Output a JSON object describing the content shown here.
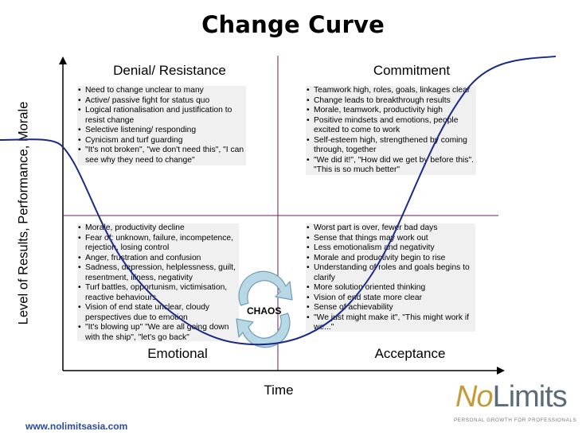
{
  "title": "Change Curve",
  "y_axis_label": "Level of Results, Performance, Morale",
  "x_axis_label": "Time",
  "quadrants": {
    "top_left": {
      "heading": "Denial/ Resistance",
      "bullets": [
        "Need to change unclear to many",
        "Active/ passive fight for status quo",
        "Logical rationalisation and justification to resist change",
        "Selective listening/ responding",
        "Cynicism and turf guarding",
        "\"It's not broken\", \"we don't need this\", \"I can see why they need to change\""
      ]
    },
    "top_right": {
      "heading": "Commitment",
      "bullets": [
        "Teamwork high, roles, goals, linkages clear",
        "Change leads to breakthrough results",
        "Morale, teamwork, productivity high",
        "Positive mindsets and emotions, people excited to come to work",
        "Self-esteem high, strengthened by coming through, together",
        "\"We did it!\", \"How did we get by before this\". \"This is so much better\""
      ]
    },
    "bottom_left": {
      "heading": "Emotional",
      "bullets": [
        "Morale, productivity decline",
        "Fear of: unknown, failure, incompetence, rejection, losing control",
        "Anger, frustration and confusion",
        "Sadness, depression, helplessness, guilt, resentment, illness, negativity",
        "Turf battles, opportunism, victimisation, reactive behaviours",
        "Vision of end state unclear, cloudy perspectives due to emotion",
        "\"It's blowing up\" \"We are all going down with the ship\", \"let's go back\""
      ]
    },
    "bottom_right": {
      "heading": "Acceptance",
      "bullets": [
        "Worst part is over, fewer bad days",
        "Sense that things may work out",
        "Less emotionalism and negativity",
        "Morale and productivity begin to rise",
        "Understanding of roles and goals begins to clarify",
        "More solution oriented thinking",
        "Vision of end state more clear",
        "Sense of achievability",
        "\"We just might make it\", \"This might work if we...\""
      ]
    }
  },
  "center_label": "CHAOS",
  "footer_url": "www.nolimitsasia.com",
  "logo": {
    "brand_first": "No",
    "brand_second": "Limits",
    "tagline": "PERSONAL GROWTH FOR PROFESSIONALS"
  },
  "colors": {
    "curve": "#1b2a87",
    "axes": "#000000",
    "grid": "#6e1f5c",
    "panel_bg": "#f0f0f0",
    "chaos_arrows": "#b8d8e6",
    "chaos_arrow_stroke": "#6f9eb5",
    "url": "#2c4a9e",
    "logo_gold": "#c49a3a",
    "logo_grey": "#5b6c78"
  }
}
